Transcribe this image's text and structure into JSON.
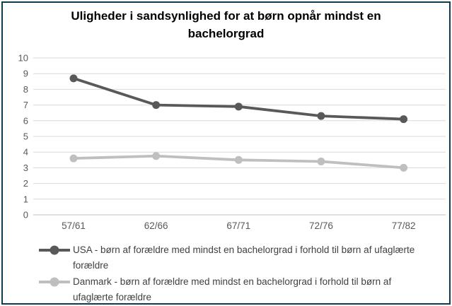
{
  "window": {
    "border_color": "#0e3a52",
    "background": "#ffffff"
  },
  "title": "Uligheder i sandsynlighed for at børn opnår mindst en bachelorgrad",
  "chart_data": {
    "type": "line",
    "title": "Uligheder i sandsynlighed for at børn opnår mindst en bachelorgrad",
    "categories": [
      "57/61",
      "62/66",
      "67/71",
      "72/76",
      "77/82"
    ],
    "series": [
      {
        "name": "USA - børn af forældre med mindst en bachelorgrad i forhold til børn af ufaglærte forældre",
        "color": "#595959",
        "marker": "circle",
        "values": [
          8.7,
          7.0,
          6.9,
          6.3,
          6.1
        ]
      },
      {
        "name": "Danmark - børn af forældre med mindst en bachelorgrad i forhold til børn af ufaglærte forældre",
        "color": "#bfbfbf",
        "marker": "circle",
        "values": [
          3.6,
          3.75,
          3.5,
          3.4,
          3.0
        ]
      }
    ],
    "xlabel": "",
    "ylabel": "",
    "ylim": [
      0,
      10
    ],
    "yticks": [
      0,
      1,
      2,
      3,
      4,
      5,
      6,
      7,
      8,
      9,
      10
    ],
    "grid": "horizontal",
    "gridline_color": "#d9d9d9",
    "axis_label_color": "#595959",
    "legend_position": "bottom-left"
  }
}
